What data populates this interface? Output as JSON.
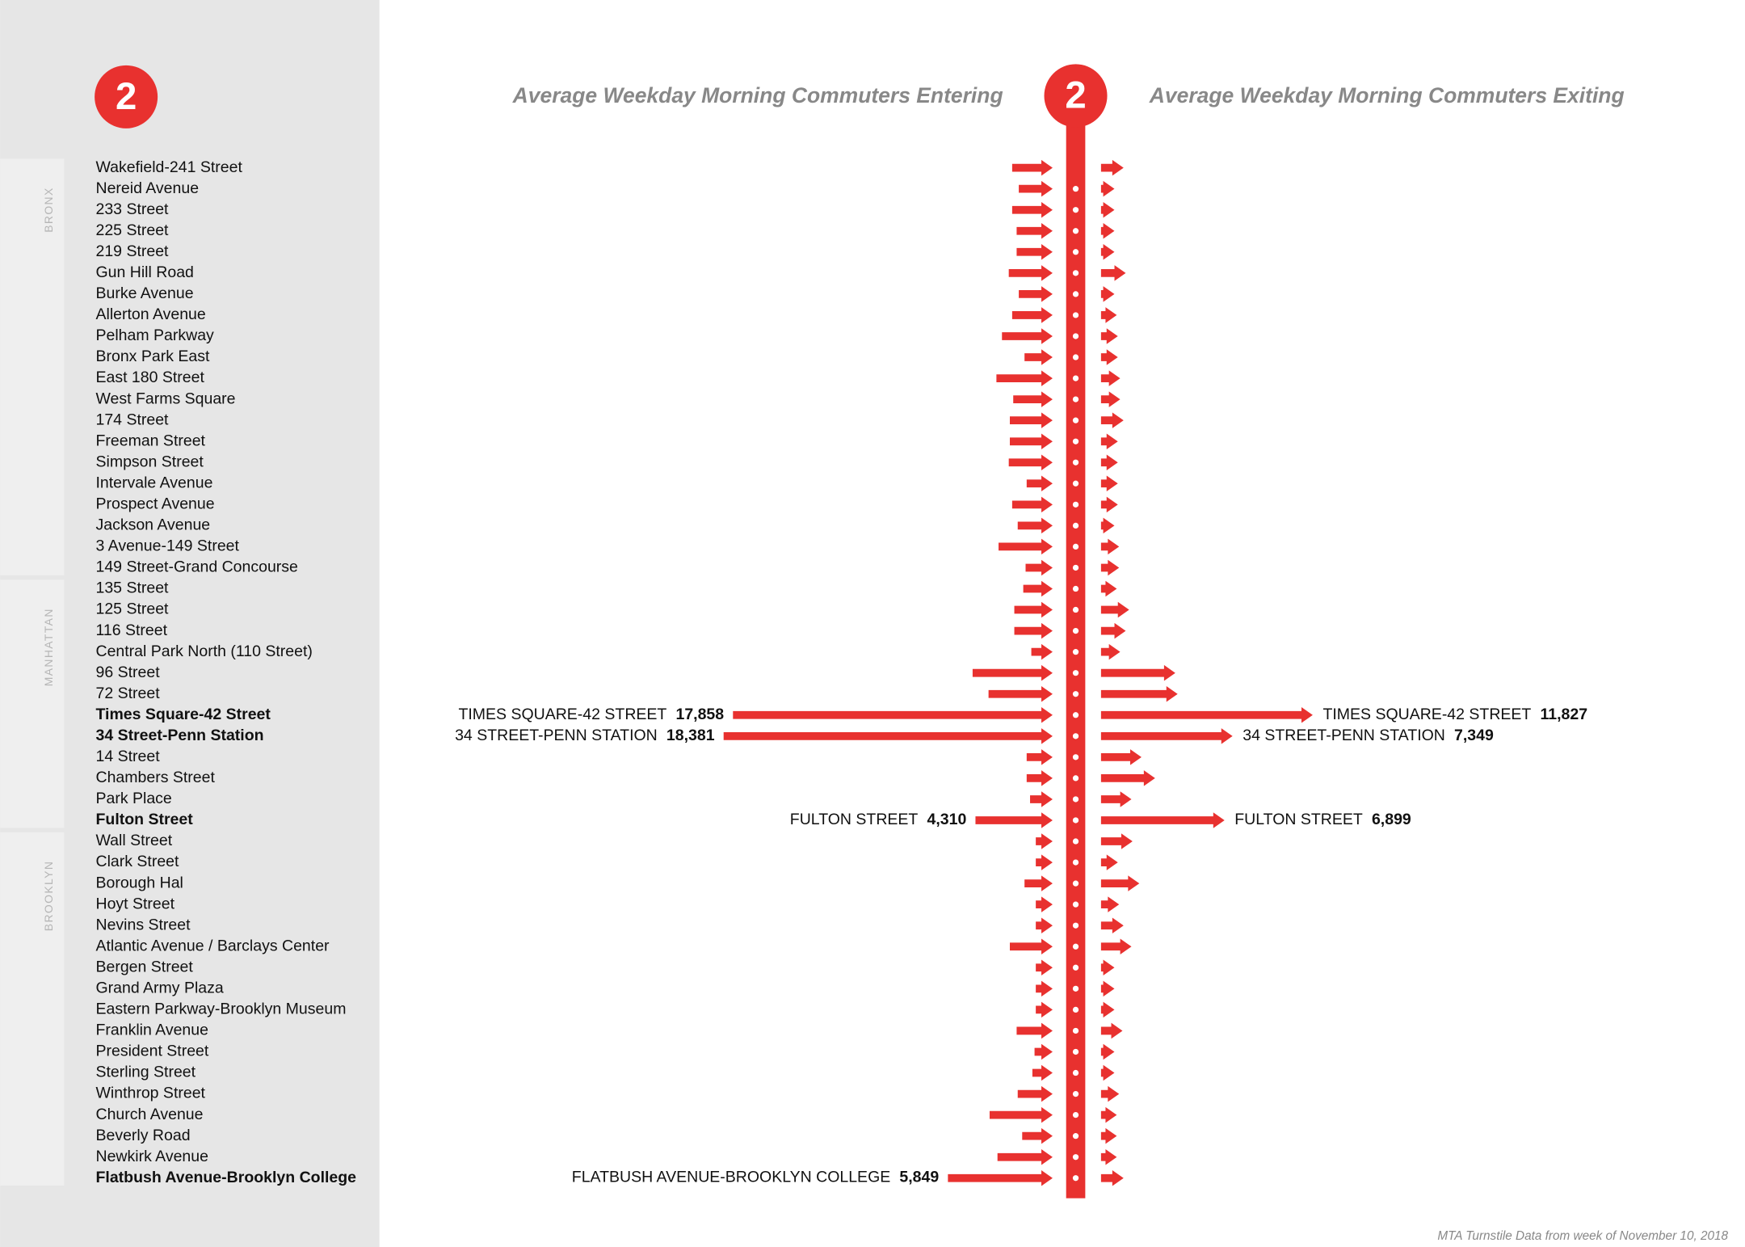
{
  "header": {
    "route": "2",
    "source": "MTA Turnstile Data from week of November 10, 2018"
  },
  "chart_data": {
    "type": "diverging-arrow",
    "groups": [
      {
        "name": "BRONX",
        "categories": [
          "Wakefield-241 Street",
          "Nereid Avenue",
          "233 Street",
          "225 Street",
          "219 Street",
          "Gun Hill Road",
          "Burke Avenue",
          "Allerton Avenue",
          "Pelham Parkway",
          "Bronx Park East",
          "East 180 Street",
          "West Farms Square",
          "174 Street",
          "Freeman Street",
          "Simpson Street",
          "Intervale Avenue",
          "Prospect Avenue",
          "Jackson Avenue",
          "3 Avenue-149 Street",
          "149 Street-Grand Concourse"
        ]
      },
      {
        "name": "MANHATTAN",
        "categories": [
          "135 Street",
          "125 Street",
          "116 Street",
          "Central Park North (110 Street)",
          "96 Street",
          "72 Street",
          "Times Square-42 Street",
          "34 Street-Penn Station",
          "14 Street",
          "Chambers Street",
          "Park Place",
          "Fulton Street"
        ]
      },
      {
        "name": "BROOKLYN",
        "categories": [
          "Wall Street",
          "Clark Street",
          "Borough Hal",
          "Hoyt Street",
          "Nevins Street",
          "Atlantic Avenue / Barclays Center",
          "Bergen Street",
          "Grand Army Plaza",
          "Eastern Parkway-Brooklyn Museum",
          "Franklin Avenue",
          "President Street",
          "Sterling Street",
          "Winthrop Street",
          "Church Avenue",
          "Beverly Road",
          "Newkirk Avenue",
          "Flatbush Avenue-Brooklyn College"
        ]
      }
    ],
    "series": [
      {
        "name": "Average Weekday Morning Commuters Entering",
        "color": "#e8312f",
        "values": [
          2260,
          1890,
          2260,
          2010,
          2010,
          2450,
          1890,
          2260,
          2830,
          1570,
          3140,
          2200,
          2390,
          2390,
          2450,
          1450,
          2260,
          1950,
          3020,
          1510,
          1640,
          2140,
          2140,
          1190,
          4470,
          3580,
          17858,
          18381,
          1450,
          1450,
          1260,
          4310,
          940,
          940,
          1570,
          940,
          940,
          2390,
          940,
          940,
          940,
          2010,
          1010,
          1130,
          1950,
          3520,
          1700,
          3080,
          5849
        ],
        "callouts": [
          null,
          null,
          null,
          null,
          null,
          null,
          null,
          null,
          null,
          null,
          null,
          null,
          null,
          null,
          null,
          null,
          null,
          null,
          null,
          null,
          null,
          null,
          null,
          null,
          null,
          null,
          "TIMES SQUARE-42 STREET",
          "34 STREET-PENN STATION",
          null,
          null,
          null,
          "FULTON STREET",
          null,
          null,
          null,
          null,
          null,
          null,
          null,
          null,
          null,
          null,
          null,
          null,
          null,
          null,
          null,
          null,
          "FLATBUSH AVENUE-BROOKLYN COLLEGE"
        ],
        "value_labels": [
          null,
          null,
          null,
          null,
          null,
          null,
          null,
          null,
          null,
          null,
          null,
          null,
          null,
          null,
          null,
          null,
          null,
          null,
          null,
          null,
          null,
          null,
          null,
          null,
          null,
          null,
          "17,858",
          "18,381",
          null,
          null,
          null,
          "4,310",
          null,
          null,
          null,
          null,
          null,
          null,
          null,
          null,
          null,
          null,
          null,
          null,
          null,
          null,
          null,
          null,
          "5,849"
        ]
      },
      {
        "name": "Average Weekday Morning Commuters Exiting",
        "color": "#e8312f",
        "values": [
          1260,
          750,
          750,
          750,
          750,
          1380,
          750,
          880,
          940,
          940,
          1070,
          1070,
          1260,
          940,
          940,
          940,
          940,
          750,
          1010,
          1010,
          880,
          1570,
          1380,
          1070,
          4150,
          4280,
          11827,
          7349,
          2260,
          3020,
          1700,
          6899,
          1760,
          940,
          2140,
          1010,
          1260,
          1700,
          750,
          750,
          750,
          1200,
          750,
          750,
          1010,
          880,
          880,
          880,
          1260
        ],
        "callouts": [
          null,
          null,
          null,
          null,
          null,
          null,
          null,
          null,
          null,
          null,
          null,
          null,
          null,
          null,
          null,
          null,
          null,
          null,
          null,
          null,
          null,
          null,
          null,
          null,
          null,
          null,
          "TIMES SQUARE-42 STREET",
          "34 STREET-PENN STATION",
          null,
          null,
          null,
          "FULTON STREET",
          null,
          null,
          null,
          null,
          null,
          null,
          null,
          null,
          null,
          null,
          null,
          null,
          null,
          null,
          null,
          null,
          null
        ],
        "value_labels": [
          null,
          null,
          null,
          null,
          null,
          null,
          null,
          null,
          null,
          null,
          null,
          null,
          null,
          null,
          null,
          null,
          null,
          null,
          null,
          null,
          null,
          null,
          null,
          null,
          null,
          null,
          "11,827",
          "7,349",
          null,
          null,
          null,
          "6,899",
          null,
          null,
          null,
          null,
          null,
          null,
          null,
          null,
          null,
          null,
          null,
          null,
          null,
          null,
          null,
          null,
          null
        ]
      }
    ]
  }
}
